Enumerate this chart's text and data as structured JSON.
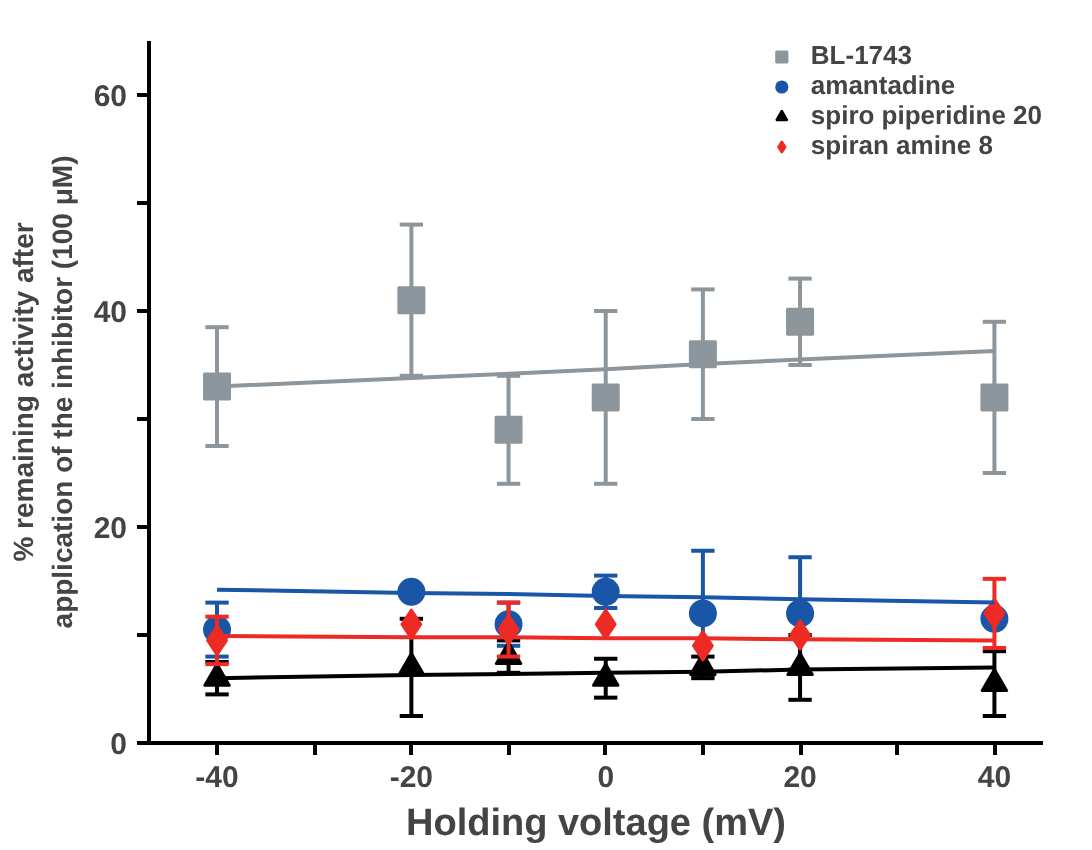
{
  "chart_data": {
    "type": "scatter",
    "xlabel": "Holding voltage (mV)",
    "ylabel": "% remaining activity after\napplication of the inhibitor (100 μM)",
    "xlim": [
      -47,
      45
    ],
    "ylim": [
      0,
      65
    ],
    "xticks": [
      -40,
      {
        "value": -30,
        "label": null
      },
      -20,
      {
        "value": -10,
        "label": null
      },
      0,
      {
        "value": 10,
        "label": null
      },
      20,
      {
        "value": 30,
        "label": null
      },
      40
    ],
    "yticks": [
      0,
      {
        "value": 10,
        "label": null
      },
      20,
      {
        "value": 30,
        "label": null
      },
      40,
      {
        "value": 50,
        "label": null
      },
      60
    ],
    "grid": false,
    "legend": "top right",
    "x": [
      -40,
      -20,
      -10,
      0,
      10,
      20,
      40
    ],
    "series": [
      {
        "name": "BL-1743",
        "color": "#8c969c",
        "marker": "square",
        "values": [
          33,
          41,
          29,
          32,
          36,
          39,
          32
        ],
        "errors": [
          5.5,
          7,
          5,
          8,
          6,
          4,
          7
        ]
      },
      {
        "name": "amantadine",
        "color": "#1a56a8",
        "marker": "circle",
        "values": [
          10.5,
          14,
          11,
          14,
          12,
          12,
          11.5
        ],
        "errors": [
          2.5,
          null,
          2,
          1.5,
          5.8,
          5.2,
          null
        ]
      },
      {
        "name": "spiro piperidine 20",
        "color": "#000000",
        "marker": "triangle",
        "values": [
          6,
          7,
          8,
          6,
          7,
          7,
          5.5
        ],
        "errors": [
          1.5,
          4.5,
          1.5,
          1.8,
          1,
          3,
          3
        ]
      },
      {
        "name": "spiran amine 8",
        "color": "#ee2a24",
        "marker": "diamond",
        "values": [
          9.5,
          11,
          10.5,
          11,
          9,
          10,
          12
        ],
        "errors": [
          2.2,
          null,
          2.5,
          null,
          null,
          null,
          3.2
        ]
      },
      {
        "type": "line",
        "color": "#8c969c",
        "values": [
          33,
          33.8,
          34.2,
          34.6,
          35.1,
          35.5,
          36.3
        ]
      },
      {
        "type": "line",
        "color": "#1a56a8",
        "values": [
          14.2,
          13.9,
          13.8,
          13.6,
          13.5,
          13.3,
          13.0
        ]
      },
      {
        "type": "line",
        "color": "#000000",
        "values": [
          6,
          6.3,
          6.4,
          6.5,
          6.6,
          6.8,
          7
        ]
      },
      {
        "type": "line",
        "color": "#ee2a24",
        "values": [
          9.9,
          9.8,
          9.8,
          9.7,
          9.7,
          9.6,
          9.5
        ]
      }
    ]
  }
}
